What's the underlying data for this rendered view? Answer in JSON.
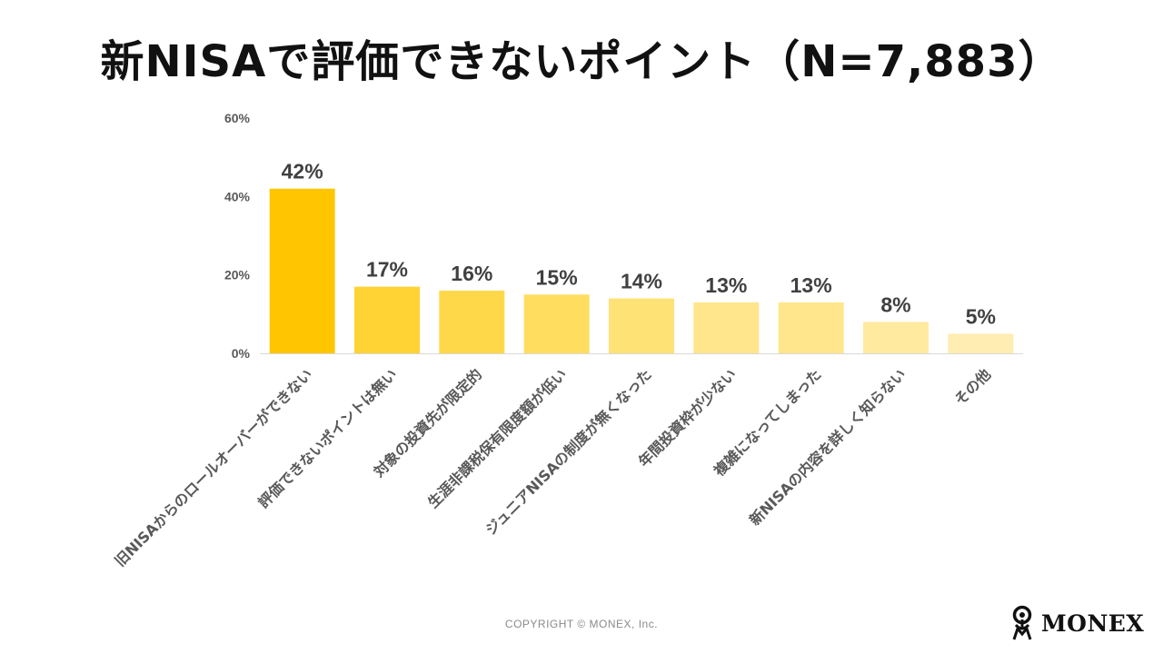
{
  "title": "新NISAで評価できないポイント（N=7,883）",
  "chart_data": {
    "type": "bar",
    "title": "新NISAで評価できないポイント（N=7,883）",
    "xlabel": "",
    "ylabel": "",
    "ylim": [
      0,
      60
    ],
    "y_ticks": [
      0,
      20,
      40,
      60
    ],
    "y_tick_labels": [
      "0%",
      "20%",
      "40%",
      "60%"
    ],
    "categories": [
      "旧NISAからのロールオーバーができない",
      "評価できないポイントは無い",
      "対象の投資先が限定的",
      "生涯非課税保有限度額が低い",
      "ジュニアNISAの制度が無くなった",
      "年間投資枠が少ない",
      "複雑になってしまった",
      "新NISAの内容を詳しく知らない",
      "その他"
    ],
    "values": [
      42,
      17,
      16,
      15,
      14,
      13,
      13,
      8,
      5
    ],
    "value_labels": [
      "42%",
      "17%",
      "16%",
      "15%",
      "14%",
      "13%",
      "13%",
      "8%",
      "5%"
    ],
    "bar_colors": [
      "#FFC600",
      "#FFD333",
      "#FFD84A",
      "#FFDD5E",
      "#FFE275",
      "#FFE68C",
      "#FFE68C",
      "#FFEAA0",
      "#FFEDB1"
    ],
    "grid": false,
    "legend": "none"
  },
  "footer": {
    "copyright": "COPYRIGHT © MONEX, Inc.",
    "logo_text": "MONEX"
  }
}
